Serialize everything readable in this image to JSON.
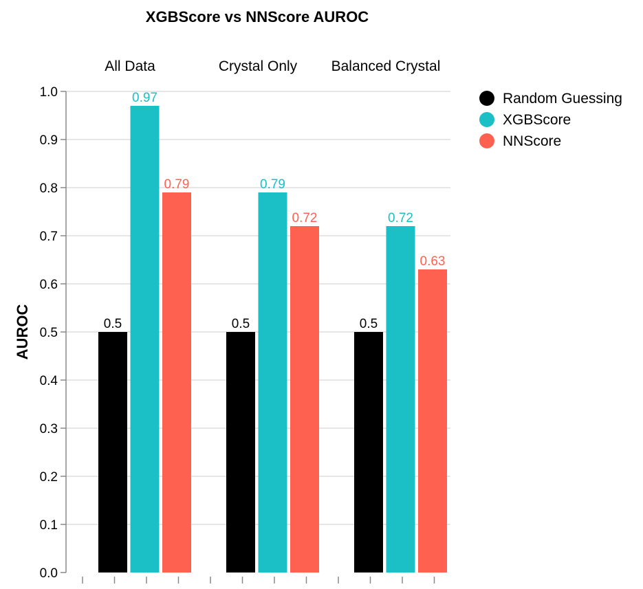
{
  "chart_data": {
    "type": "bar",
    "title": "XGBScore vs NNScore AUROC",
    "ylabel": "AUROC",
    "xlabel": "",
    "ylim": [
      0,
      1
    ],
    "yticks": [
      "0.0",
      "0.1",
      "0.2",
      "0.3",
      "0.4",
      "0.5",
      "0.6",
      "0.7",
      "0.8",
      "0.9",
      "1.0"
    ],
    "grid": true,
    "legend_position": "top-right",
    "categories": [
      "All Data",
      "Crystal Only",
      "Balanced Crystal"
    ],
    "series": [
      {
        "name": "Random Guessing",
        "color": "#000000",
        "values": [
          0.5,
          0.5,
          0.5
        ],
        "labels": [
          "0.5",
          "0.5",
          "0.5"
        ]
      },
      {
        "name": "XGBScore",
        "color": "#1BBFC6",
        "values": [
          0.97,
          0.79,
          0.72
        ],
        "labels": [
          "0.97",
          "0.79",
          "0.72"
        ]
      },
      {
        "name": "NNScore",
        "color": "#FF6150",
        "values": [
          0.79,
          0.72,
          0.63
        ],
        "labels": [
          "0.79",
          "0.72",
          "0.63"
        ]
      }
    ]
  }
}
